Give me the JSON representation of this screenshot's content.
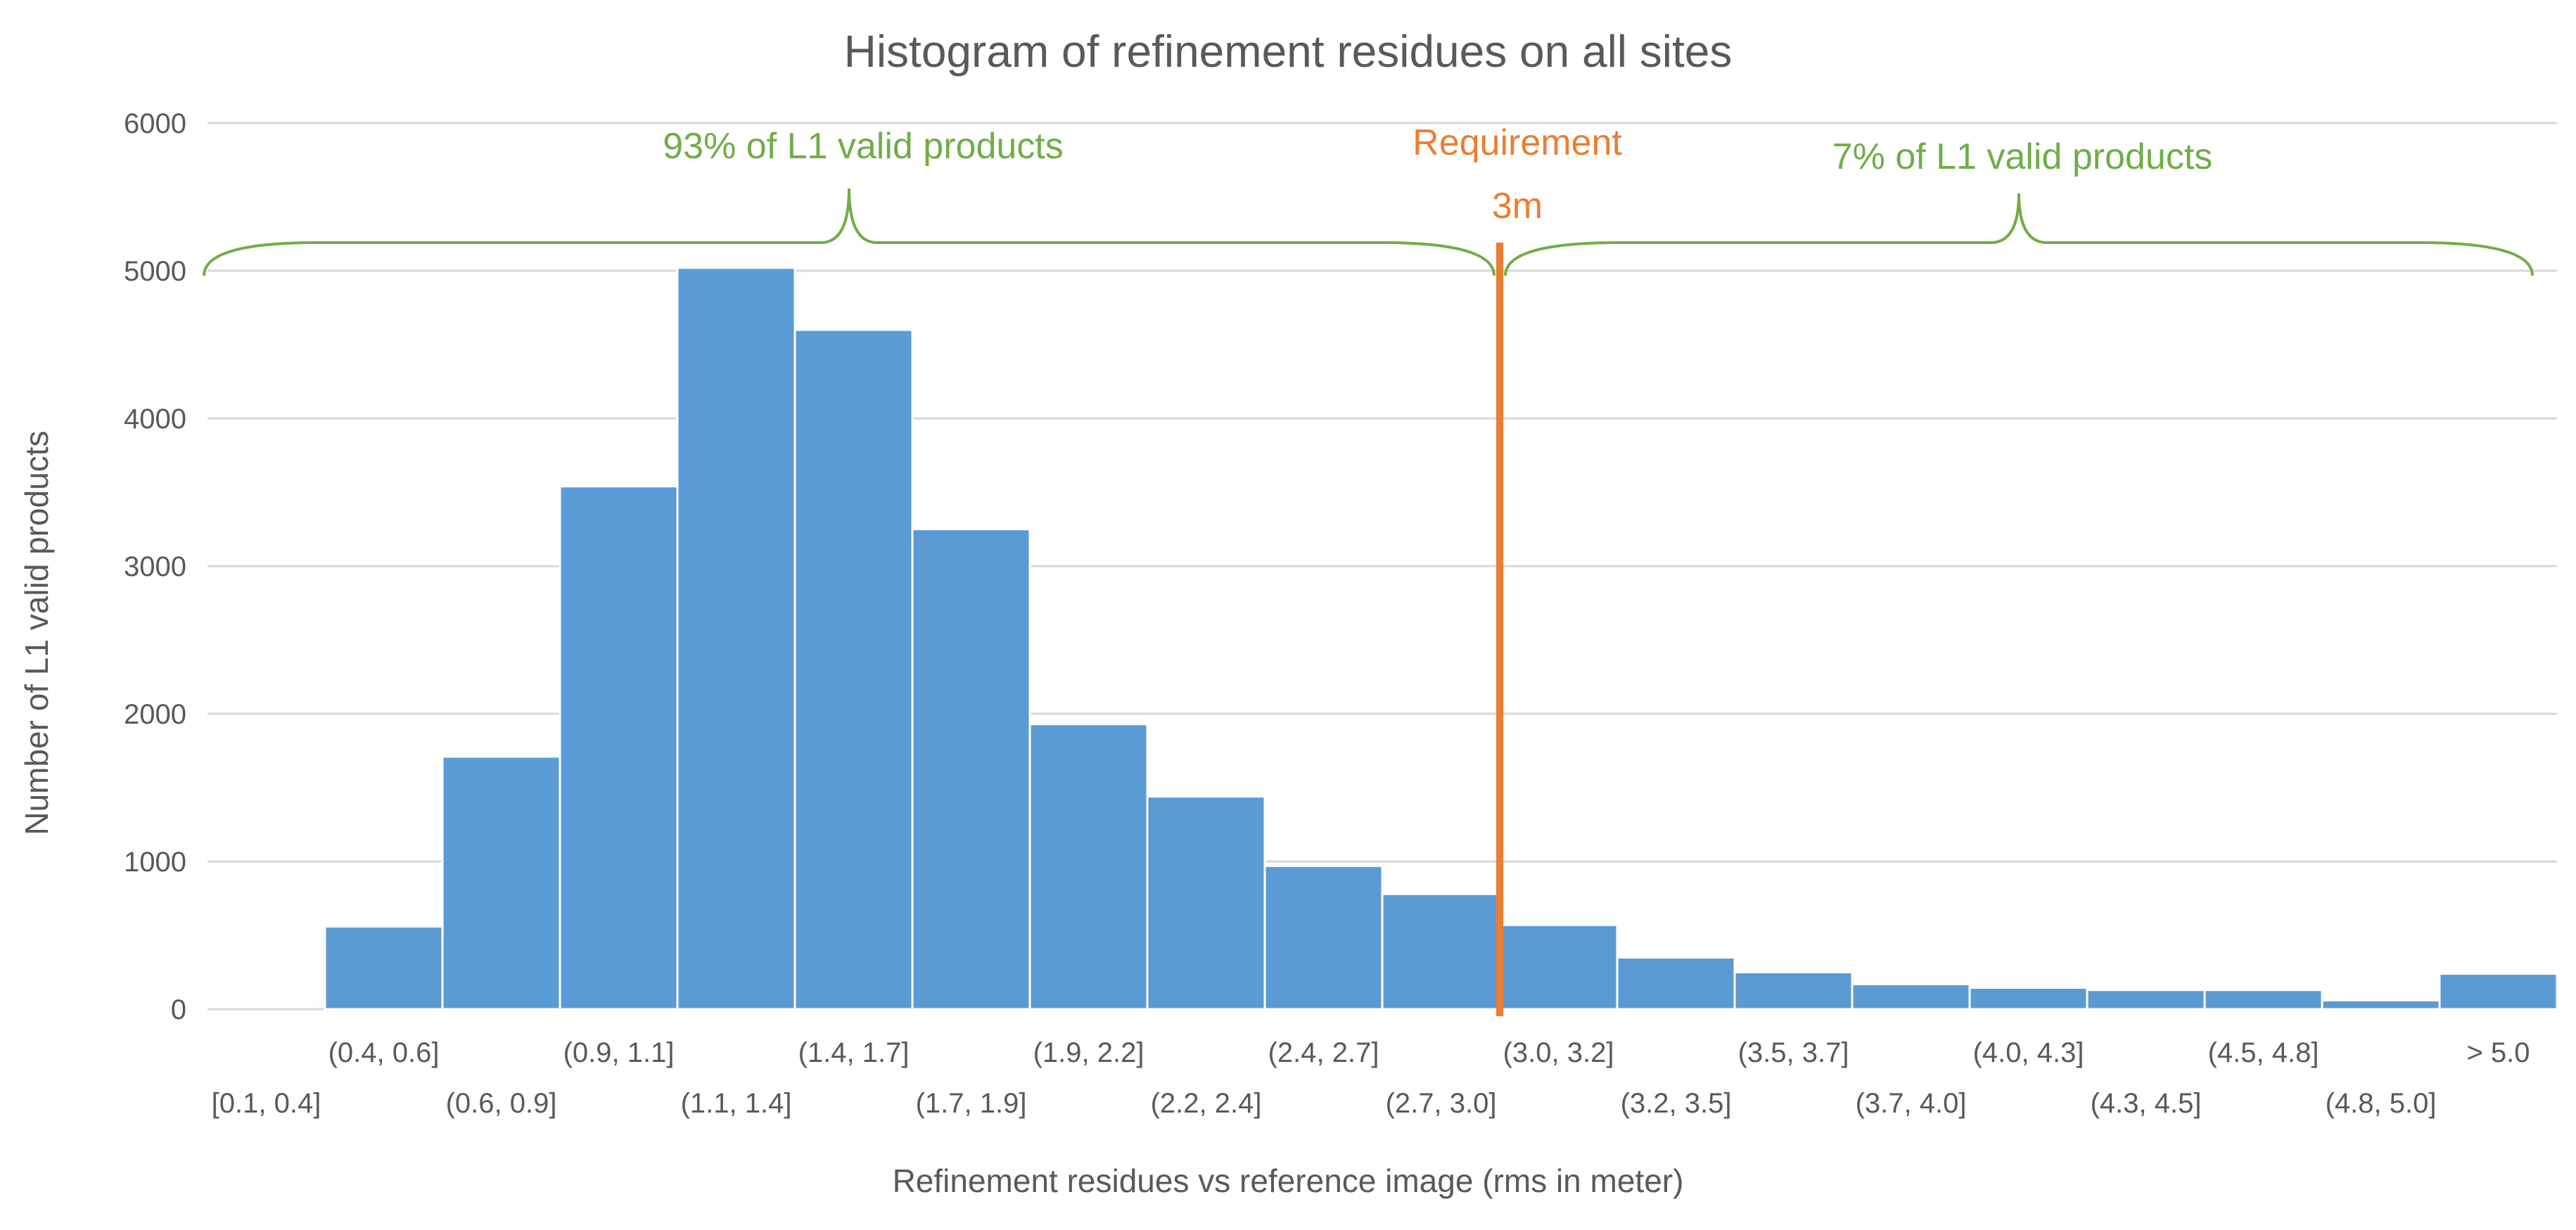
{
  "chart_data": {
    "type": "bar",
    "title": "Histogram of refinement residues on all sites",
    "xlabel": "Refinement residues vs reference image (rms in meter)",
    "ylabel": "Number of L1 valid products",
    "ylim": [
      0,
      6000
    ],
    "yticks": [
      "0",
      "1000",
      "2000",
      "3000",
      "4000",
      "5000",
      "6000"
    ],
    "grid": true,
    "categories": [
      "[0.1, 0.4]",
      "(0.4, 0.6]",
      "(0.6, 0.9]",
      "(0.9, 1.1]",
      "(1.1, 1.4]",
      "(1.4, 1.7]",
      "(1.7, 1.9]",
      "(1.9, 2.2]",
      "(2.2, 2.4]",
      "(2.4, 2.7]",
      "(2.7, 3.0]",
      "(3.0, 3.2]",
      "(3.2, 3.5]",
      "(3.5, 3.7]",
      "(3.7, 4.0]",
      "(4.0, 4.3]",
      "(4.3, 4.5]",
      "(4.5, 4.8]",
      "(4.8, 5.0]",
      "> 5.0"
    ],
    "values": [
      0,
      560,
      1710,
      3540,
      5020,
      4600,
      3250,
      1930,
      1440,
      970,
      780,
      570,
      350,
      250,
      170,
      145,
      130,
      130,
      60,
      240
    ],
    "annotations": {
      "left_share": "93% of L1 valid products",
      "right_share": "7% of L1 valid products",
      "requirement_label": "Requirement",
      "requirement_value_label": "3m",
      "requirement_after_category_index": 10
    },
    "colors": {
      "bar": "#5b9bd5",
      "brace": "#70ad47",
      "requirement": "#ed7d31"
    }
  }
}
